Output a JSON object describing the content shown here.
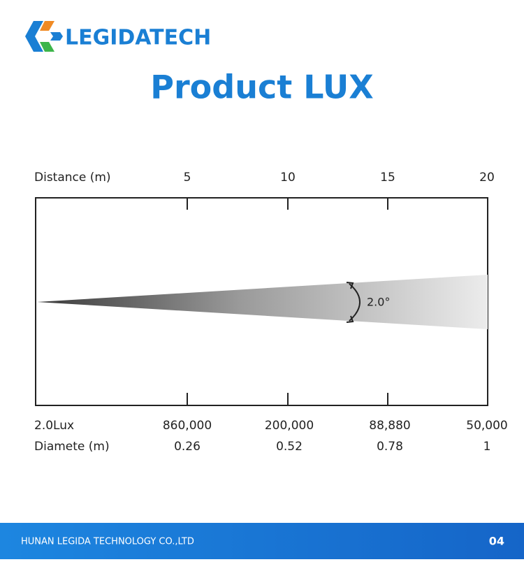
{
  "header": {
    "brand": "LEGIDATECH",
    "title": "Product LUX"
  },
  "diagram": {
    "distance_label": "Distance (m)",
    "distances": [
      "5",
      "10",
      "15",
      "20"
    ],
    "angle": "2.0°"
  },
  "rows": [
    {
      "label": "2.0Lux",
      "values": [
        "860,000",
        "200,000",
        "88,880",
        "50,000"
      ]
    },
    {
      "label": "Diamete (m)",
      "values": [
        "0.26",
        "0.52",
        "0.78",
        "1"
      ]
    }
  ],
  "footer": {
    "company": "HUNAN LEGIDA TECHNOLOGY CO.,LTD",
    "page": "04"
  }
}
